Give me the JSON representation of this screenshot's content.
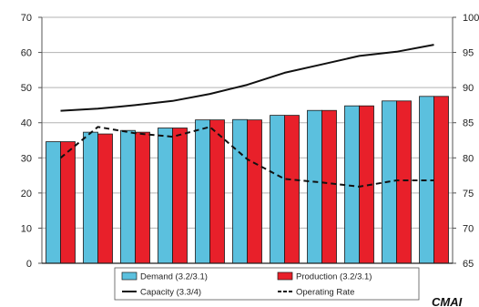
{
  "chart_data": {
    "type": "bar",
    "categories": [
      "",
      "",
      "",
      "",
      "",
      "",
      "",
      "",
      "",
      "",
      ""
    ],
    "series": [
      {
        "name": "Demand (3.2/3.1)",
        "axis": "left",
        "kind": "bar",
        "color": "#5bc0de",
        "values": [
          34.6,
          37.3,
          37.8,
          38.5,
          40.8,
          40.9,
          42.1,
          43.5,
          44.8,
          46.2,
          47.5
        ]
      },
      {
        "name": "Production (3.2/3.1)",
        "axis": "left",
        "kind": "bar",
        "color": "#e8202a",
        "values": [
          34.6,
          36.8,
          37.3,
          38.5,
          40.8,
          40.8,
          42.1,
          43.5,
          44.8,
          46.2,
          47.5
        ]
      },
      {
        "name": "Capacity (3.3/4)",
        "axis": "right",
        "kind": "line",
        "style": "solid",
        "color": "#111111",
        "values": [
          86.7,
          87.0,
          87.5,
          88.1,
          89.1,
          90.4,
          92.1,
          93.3,
          94.5,
          95.1,
          96.1
        ]
      },
      {
        "name": "Operating Rate",
        "axis": "right",
        "kind": "line",
        "style": "dashed",
        "color": "#111111",
        "values": [
          80.0,
          84.4,
          83.5,
          83.0,
          84.4,
          79.8,
          77.0,
          76.5,
          75.9,
          76.8,
          76.8
        ]
      }
    ],
    "y_left": {
      "ticks": [
        "0",
        "10",
        "20",
        "30",
        "40",
        "50",
        "60",
        "70"
      ],
      "range": [
        0,
        70
      ]
    },
    "y_right": {
      "ticks": [
        "65",
        "70",
        "75",
        "80",
        "85",
        "90",
        "95",
        "100"
      ],
      "range": [
        65,
        100
      ]
    },
    "grid": "horizontal",
    "legend_position": "bottom",
    "brand_text": "CMAI"
  }
}
